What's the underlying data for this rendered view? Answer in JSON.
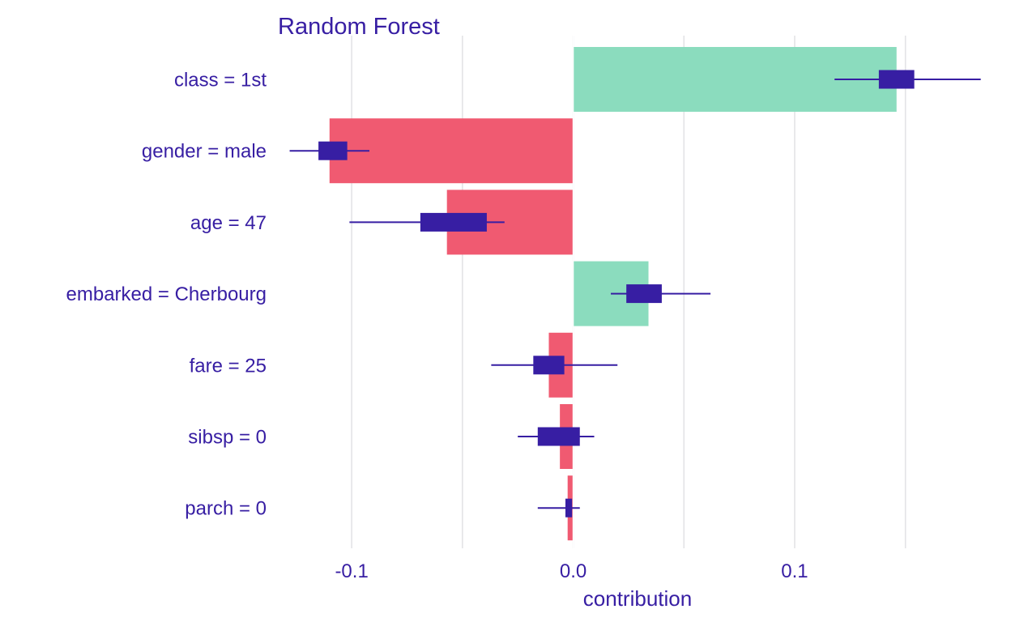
{
  "chart_data": {
    "type": "bar",
    "title": "Random Forest",
    "xlabel": "contribution",
    "ylabel": "",
    "xlim": [
      -0.1315,
      0.1845
    ],
    "xticks": [
      {
        "value": -0.1,
        "label": "-0.1"
      },
      {
        "value": 0.0,
        "label": "0.0"
      },
      {
        "value": 0.1,
        "label": "0.1"
      }
    ],
    "minor_gridlines": [
      -0.05,
      0.05,
      0.15
    ],
    "grid": true,
    "legend": "none",
    "colors": {
      "positive": "#8bdcbe",
      "negative": "#f05a71",
      "boxplot": "#371ea3",
      "text": "#371ea3",
      "grid": "#e3e3e6"
    },
    "categories": [
      "class = 1st",
      "gender = male",
      "age = 47",
      "embarked = Cherbourg",
      "fare = 25",
      "sibsp = 0",
      "parch = 0"
    ],
    "values": [
      0.146,
      -0.11,
      -0.057,
      0.034,
      -0.011,
      -0.006,
      -0.0025
    ],
    "boxplots": [
      {
        "min": 0.118,
        "q1": 0.138,
        "q3": 0.154,
        "max": 0.184
      },
      {
        "min": -0.128,
        "q1": -0.115,
        "q3": -0.102,
        "max": -0.092
      },
      {
        "min": -0.101,
        "q1": -0.069,
        "q3": -0.039,
        "max": -0.031
      },
      {
        "min": 0.017,
        "q1": 0.024,
        "q3": 0.04,
        "max": 0.062
      },
      {
        "min": -0.037,
        "q1": -0.018,
        "q3": -0.004,
        "max": 0.02
      },
      {
        "min": -0.025,
        "q1": -0.016,
        "q3": 0.003,
        "max": 0.0095
      },
      {
        "min": -0.016,
        "q1": -0.0035,
        "q3": -0.0005,
        "max": 0.003
      }
    ]
  }
}
